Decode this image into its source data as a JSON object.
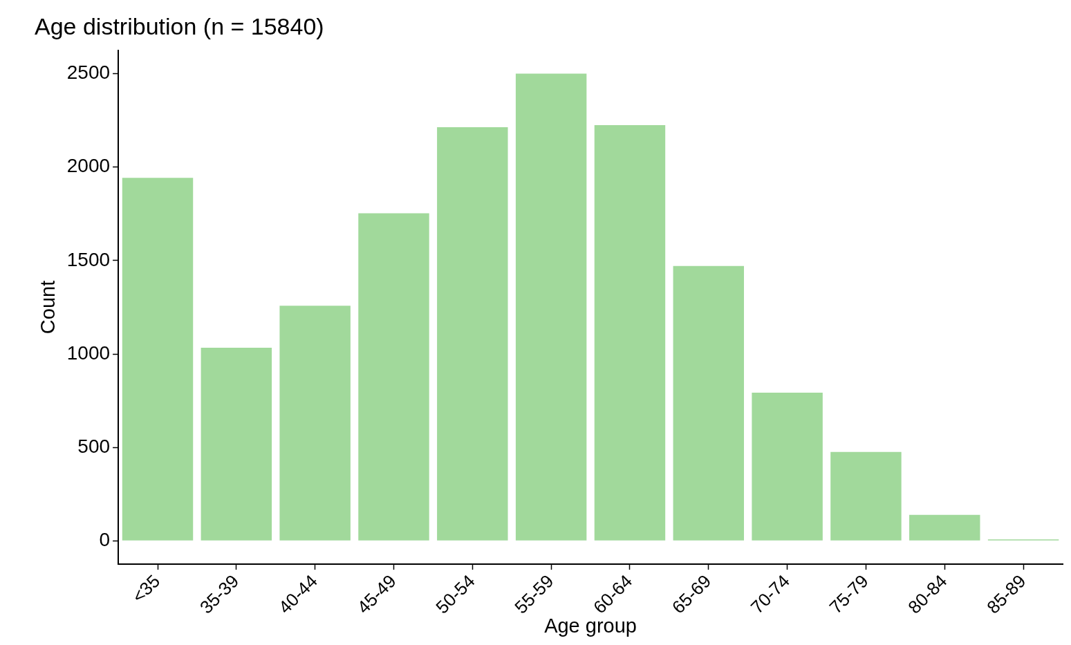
{
  "chart_data": {
    "type": "bar",
    "title": "Age distribution (n = 15840)",
    "xlabel": "Age group",
    "ylabel": "Count",
    "categories": [
      "<35",
      "35-39",
      "40-44",
      "45-49",
      "50-54",
      "55-59",
      "60-64",
      "65-69",
      "70-74",
      "75-79",
      "80-84",
      "85-89"
    ],
    "values": [
      1943,
      1033,
      1258,
      1753,
      2214,
      2500,
      2225,
      1471,
      793,
      476,
      139,
      8
    ],
    "color": "#a1d99b",
    "ylim": [
      -125,
      2625
    ],
    "yticks": [
      0,
      500,
      1000,
      1500,
      2000,
      2500
    ],
    "grid": false,
    "legend": false
  }
}
